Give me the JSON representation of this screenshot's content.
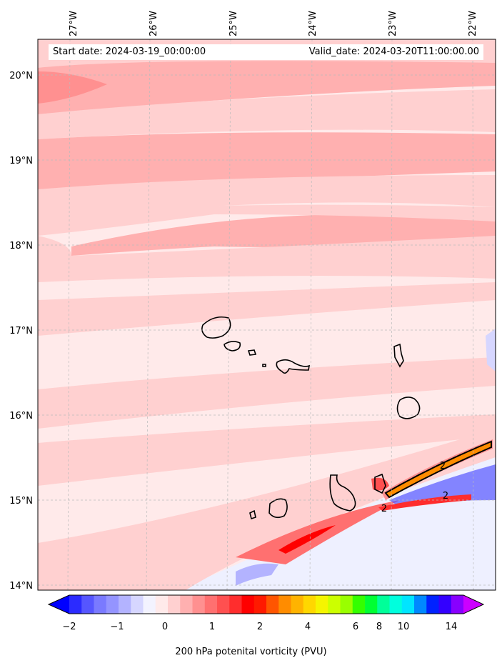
{
  "header": {
    "start_label": "Start date: 2024-03-19_00:00:00",
    "valid_label": "Valid_date: 2024-03-20T11:00:00.00"
  },
  "axes": {
    "lon_labels": [
      "27°W",
      "26°W",
      "25°W",
      "24°W",
      "23°W",
      "22°W"
    ],
    "lat_labels": [
      "20°N",
      "19°N",
      "18°N",
      "17°N",
      "16°N",
      "15°N",
      "14°N"
    ]
  },
  "colorbar": {
    "label": "200 hPa potenital vorticity (PVU)",
    "ticks": [
      "−2",
      "−1",
      "0",
      "1",
      "2",
      "4",
      "6",
      "8",
      "10",
      "14"
    ],
    "colors": [
      "#0000ff",
      "#2b2bff",
      "#5656ff",
      "#7a7aff",
      "#9494ff",
      "#b3b3ff",
      "#d6d6ff",
      "#f3f3ff",
      "#ffeaea",
      "#ffd0d0",
      "#ffb0b0",
      "#ff9090",
      "#ff7070",
      "#ff5050",
      "#ff2d2d",
      "#ff0000",
      "#ff1a00",
      "#ff5500",
      "#ff8c00",
      "#ffb300",
      "#ffd700",
      "#f5f500",
      "#ccff00",
      "#99ff00",
      "#33ff00",
      "#00ff33",
      "#00ff99",
      "#00ffdd",
      "#00e5ff",
      "#0088ff",
      "#0022ff",
      "#3300ff",
      "#8800ff",
      "#cc00ff"
    ]
  },
  "contour_labels": [
    "2",
    "2",
    "2"
  ]
}
